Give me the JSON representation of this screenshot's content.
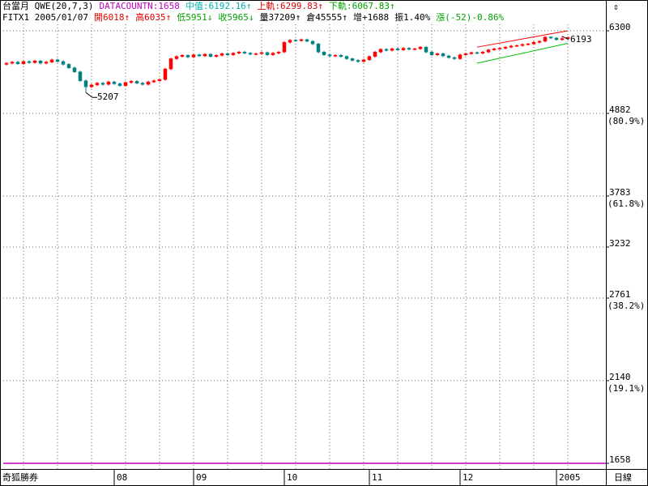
{
  "chart_data": {
    "type": "candlestick",
    "header_lines": [
      [
        {
          "text": "台當月 QWE(20,7,3)",
          "color": "#000000"
        },
        {
          "text": "DATACOUNTN:1658",
          "color": "#c000c0"
        },
        {
          "text": "中值:6192.16↑",
          "color": "#00b0b0"
        },
        {
          "text": "上軌:6299.83↑",
          "color": "#e00000"
        },
        {
          "text": "下軌:6067.83↑",
          "color": "#00a000"
        }
      ],
      [
        {
          "text": "FITX1 2005/01/07",
          "color": "#000000"
        },
        {
          "text": "開6018↑",
          "color": "#e00000"
        },
        {
          "text": "高6035↑",
          "color": "#e00000"
        },
        {
          "text": "低5951↓",
          "color": "#00a000"
        },
        {
          "text": "收5965↓",
          "color": "#00a000"
        },
        {
          "text": "量37209↑",
          "color": "#000000"
        },
        {
          "text": "倉45555↑",
          "color": "#000000"
        },
        {
          "text": "增+1688",
          "color": "#000000"
        },
        {
          "text": "振1.40%",
          "color": "#000000"
        },
        {
          "text": "漲(-52)-0.86%",
          "color": "#00a000"
        }
      ]
    ],
    "corner_left": "奇狐勝券",
    "corner_right": "日線",
    "log_scale": true,
    "grid": true,
    "up_color": "#ff0000",
    "down_color": "#008080",
    "categories": [
      null,
      null,
      null,
      null,
      null,
      null,
      null,
      null,
      null,
      null,
      null,
      null,
      null,
      null,
      null,
      null,
      null,
      null,
      null,
      "08",
      null,
      null,
      null,
      null,
      null,
      null,
      null,
      null,
      null,
      null,
      null,
      null,
      null,
      "09",
      null,
      null,
      null,
      null,
      null,
      null,
      null,
      null,
      null,
      null,
      null,
      null,
      null,
      null,
      null,
      "10",
      null,
      null,
      null,
      null,
      null,
      null,
      null,
      null,
      null,
      null,
      null,
      null,
      null,
      null,
      "11",
      null,
      null,
      null,
      null,
      null,
      null,
      null,
      null,
      null,
      null,
      null,
      null,
      null,
      null,
      null,
      "12",
      null,
      null,
      null,
      null,
      null,
      null,
      null,
      null,
      null,
      null,
      null,
      null,
      null,
      null,
      null,
      null,
      "2005",
      null,
      null
    ],
    "open": [
      5680,
      5700,
      5720,
      5690,
      5730,
      5710,
      5740,
      5700,
      5720,
      5760,
      5730,
      5680,
      5620,
      5550,
      5400,
      5300,
      5330,
      5360,
      5340,
      5380,
      5350,
      5320,
      5370,
      5390,
      5360,
      5340,
      5380,
      5400,
      5420,
      5600,
      5780,
      5820,
      5840,
      5810,
      5850,
      5830,
      5860,
      5820,
      5840,
      5870,
      5850,
      5880,
      5900,
      5880,
      5860,
      5870,
      5890,
      5850,
      5880,
      5900,
      6080,
      6120,
      6110,
      6130,
      6100,
      6050,
      5900,
      5850,
      5830,
      5840,
      5820,
      5780,
      5750,
      5730,
      5760,
      5820,
      5900,
      5950,
      5930,
      5960,
      5940,
      5970,
      5950,
      5960,
      5990,
      5900,
      5850,
      5870,
      5830,
      5800,
      5780,
      5850,
      5870,
      5890,
      5880,
      5900,
      5940,
      5960,
      5970,
      5990,
      6010,
      6020,
      6040,
      6050,
      6080,
      6100,
      6180,
      6160,
      6130,
      6150
    ],
    "high": [
      5720,
      5740,
      5740,
      5750,
      5750,
      5760,
      5760,
      5740,
      5780,
      5780,
      5750,
      5700,
      5640,
      5570,
      5420,
      5350,
      5380,
      5380,
      5400,
      5400,
      5370,
      5390,
      5410,
      5410,
      5380,
      5400,
      5420,
      5440,
      5620,
      5800,
      5840,
      5860,
      5860,
      5870,
      5870,
      5880,
      5880,
      5860,
      5890,
      5890,
      5900,
      5920,
      5920,
      5900,
      5890,
      5910,
      5910,
      5900,
      5920,
      6100,
      6140,
      6140,
      6150,
      6150,
      6120,
      6070,
      5920,
      5870,
      5860,
      5860,
      5840,
      5800,
      5770,
      5780,
      5840,
      5920,
      5970,
      5970,
      5980,
      5980,
      5990,
      5990,
      5980,
      6010,
      6010,
      5920,
      5890,
      5890,
      5850,
      5820,
      5870,
      5890,
      5910,
      5910,
      5920,
      5960,
      5980,
      5990,
      6010,
      6030,
      6040,
      6060,
      6070,
      6100,
      6120,
      6190,
      6190,
      6180,
      6193,
      6190
    ],
    "low": [
      5660,
      5680,
      5670,
      5670,
      5690,
      5690,
      5680,
      5680,
      5700,
      5710,
      5660,
      5600,
      5530,
      5380,
      5207,
      5280,
      5310,
      5320,
      5320,
      5330,
      5300,
      5300,
      5350,
      5340,
      5320,
      5320,
      5360,
      5380,
      5400,
      5580,
      5760,
      5800,
      5790,
      5790,
      5810,
      5810,
      5800,
      5800,
      5820,
      5830,
      5830,
      5860,
      5860,
      5840,
      5840,
      5850,
      5830,
      5830,
      5860,
      5880,
      6060,
      6090,
      6090,
      6080,
      6030,
      5880,
      5830,
      5810,
      5810,
      5800,
      5760,
      5730,
      5710,
      5710,
      5740,
      5800,
      5880,
      5910,
      5910,
      5920,
      5920,
      5930,
      5930,
      5940,
      5880,
      5830,
      5830,
      5810,
      5780,
      5760,
      5760,
      5830,
      5850,
      5860,
      5860,
      5880,
      5920,
      5940,
      5950,
      5970,
      5990,
      6000,
      6020,
      6030,
      6060,
      6080,
      6140,
      6110,
      6110,
      6130
    ],
    "close": [
      5700,
      5720,
      5690,
      5730,
      5710,
      5740,
      5700,
      5720,
      5760,
      5730,
      5680,
      5620,
      5550,
      5400,
      5300,
      5330,
      5360,
      5340,
      5380,
      5350,
      5320,
      5370,
      5390,
      5360,
      5340,
      5380,
      5400,
      5420,
      5600,
      5780,
      5820,
      5840,
      5810,
      5850,
      5830,
      5860,
      5820,
      5840,
      5870,
      5850,
      5880,
      5900,
      5880,
      5860,
      5870,
      5890,
      5850,
      5880,
      5900,
      6080,
      6120,
      6110,
      6130,
      6100,
      6050,
      5900,
      5850,
      5830,
      5840,
      5820,
      5780,
      5750,
      5730,
      5760,
      5820,
      5900,
      5950,
      5930,
      5960,
      5940,
      5970,
      5950,
      5960,
      5990,
      5900,
      5850,
      5870,
      5830,
      5800,
      5780,
      5850,
      5870,
      5890,
      5880,
      5900,
      5940,
      5960,
      5970,
      5990,
      6010,
      6020,
      6040,
      6050,
      6080,
      6100,
      6180,
      6160,
      6130,
      6150,
      6170
    ],
    "ylim": [
      1658,
      6300
    ],
    "yticks": [
      6300,
      {
        "value": 4882,
        "label": "4882",
        "note": "(80.9%)"
      },
      {
        "value": 3783,
        "label": "3783",
        "note": "(61.8%)"
      },
      3232,
      {
        "value": 2761,
        "label": "2761",
        "note": "(38.2%)"
      },
      {
        "value": 2140,
        "label": "2140",
        "note": "(19.1%)"
      },
      1658
    ],
    "reference_line": {
      "value": 1658,
      "color": "#c000c0"
    },
    "channel": [
      {
        "x": [
          83,
          99
        ],
        "values": [
          5990,
          6300
        ],
        "color": "#ff0000"
      },
      {
        "x": [
          83,
          99
        ],
        "values": [
          5700,
          6060
        ],
        "color": "#00c000"
      }
    ],
    "annotations": [
      {
        "label": "5207",
        "value": 5207,
        "x": 14
      },
      {
        "label": "6193",
        "value": 6193,
        "x": 98
      }
    ]
  }
}
